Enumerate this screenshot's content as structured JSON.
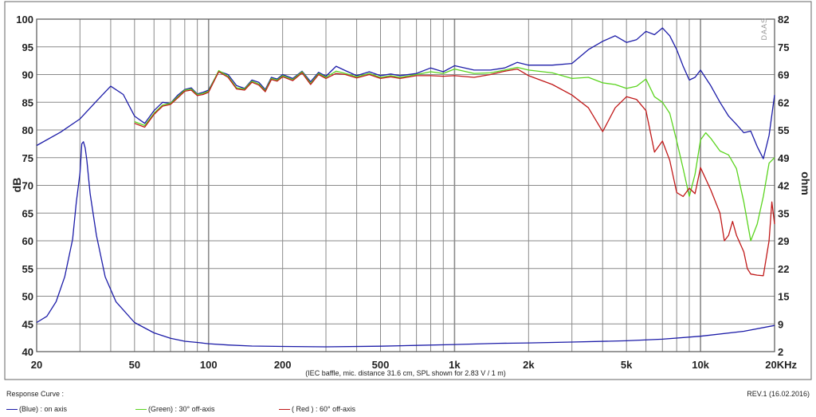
{
  "chart_data": {
    "type": "line",
    "xscale": "log",
    "xlim": [
      20,
      20000
    ],
    "ylim_left": [
      40,
      100
    ],
    "ylim_right": [
      2,
      82
    ],
    "ylabel_left": "dB",
    "ylabel_right": "ohm",
    "note": "(IEC baffle, mic. distance 31.6 cm, SPL shown for 2.83 V / 1 m)",
    "watermark": "DAAS",
    "x_tick_labels": [
      {
        "v": 20,
        "t": "20"
      },
      {
        "v": 50,
        "t": "50"
      },
      {
        "v": 100,
        "t": "100"
      },
      {
        "v": 200,
        "t": "200"
      },
      {
        "v": 500,
        "t": "500"
      },
      {
        "v": 1000,
        "t": "1k"
      },
      {
        "v": 2000,
        "t": "2k"
      },
      {
        "v": 5000,
        "t": "5k"
      },
      {
        "v": 10000,
        "t": "10k"
      },
      {
        "v": 20000,
        "t": "20KHz"
      }
    ],
    "y_left_ticks": [
      "40",
      "45",
      "50",
      "55",
      "60",
      "65",
      "70",
      "75",
      "80",
      "85",
      "90",
      "95",
      "100"
    ],
    "y_right_ticks": [
      "2",
      "9",
      "15",
      "22",
      "29",
      "35",
      "42",
      "49",
      "55",
      "62",
      "69",
      "75",
      "82"
    ],
    "colors": {
      "blue": "#1c1ca8",
      "green": "#5ad41e",
      "red": "#c01818",
      "grid": "#8a8a8a"
    },
    "series": [
      {
        "name": "(Blue) : on axis",
        "axis": "left",
        "color": "#1c1ca8",
        "points": [
          [
            20,
            77.2
          ],
          [
            25,
            79.6
          ],
          [
            30,
            82
          ],
          [
            35,
            85.2
          ],
          [
            40,
            87.9
          ],
          [
            45,
            86.4
          ],
          [
            50,
            82.5
          ],
          [
            55,
            81.2
          ],
          [
            60,
            83.5
          ],
          [
            65,
            85
          ],
          [
            70,
            84.8
          ],
          [
            75,
            86.3
          ],
          [
            80,
            87.3
          ],
          [
            85,
            87.6
          ],
          [
            90,
            86.5
          ],
          [
            95,
            86.8
          ],
          [
            100,
            87.2
          ],
          [
            110,
            90.6
          ],
          [
            120,
            90
          ],
          [
            130,
            88
          ],
          [
            140,
            87.5
          ],
          [
            150,
            89
          ],
          [
            160,
            88.6
          ],
          [
            170,
            87.3
          ],
          [
            180,
            89.5
          ],
          [
            190,
            89.2
          ],
          [
            200,
            90
          ],
          [
            220,
            89.3
          ],
          [
            240,
            90.6
          ],
          [
            260,
            88.7
          ],
          [
            280,
            90.4
          ],
          [
            300,
            89.7
          ],
          [
            330,
            91.5
          ],
          [
            360,
            90.7
          ],
          [
            400,
            89.8
          ],
          [
            450,
            90.5
          ],
          [
            500,
            89.8
          ],
          [
            550,
            90.1
          ],
          [
            600,
            89.8
          ],
          [
            700,
            90.2
          ],
          [
            800,
            91.2
          ],
          [
            900,
            90.5
          ],
          [
            1000,
            91.6
          ],
          [
            1200,
            90.8
          ],
          [
            1400,
            90.8
          ],
          [
            1600,
            91.2
          ],
          [
            1800,
            92.2
          ],
          [
            2000,
            91.7
          ],
          [
            2500,
            91.7
          ],
          [
            3000,
            92
          ],
          [
            3500,
            94.5
          ],
          [
            4000,
            96
          ],
          [
            4500,
            97
          ],
          [
            5000,
            95.8
          ],
          [
            5500,
            96.3
          ],
          [
            6000,
            97.8
          ],
          [
            6500,
            97.2
          ],
          [
            7000,
            98.4
          ],
          [
            7500,
            97
          ],
          [
            8000,
            94.5
          ],
          [
            8500,
            91.5
          ],
          [
            9000,
            89
          ],
          [
            9500,
            89.5
          ],
          [
            10000,
            90.8
          ],
          [
            11000,
            88
          ],
          [
            12000,
            85
          ],
          [
            13000,
            82.5
          ],
          [
            14000,
            81
          ],
          [
            15000,
            79.5
          ],
          [
            16000,
            79.8
          ],
          [
            17000,
            77
          ],
          [
            18000,
            74.8
          ],
          [
            19000,
            79
          ],
          [
            20000,
            86.3
          ]
        ]
      },
      {
        "name": "(Green) : 30° off-axis",
        "axis": "left",
        "color": "#5ad41e",
        "points": [
          [
            50,
            81.5
          ],
          [
            55,
            80.8
          ],
          [
            60,
            83
          ],
          [
            65,
            84.5
          ],
          [
            70,
            84.8
          ],
          [
            75,
            86
          ],
          [
            80,
            87.2
          ],
          [
            85,
            87.4
          ],
          [
            90,
            86.4
          ],
          [
            95,
            86.6
          ],
          [
            100,
            87
          ],
          [
            110,
            90.7
          ],
          [
            120,
            89.7
          ],
          [
            130,
            87.6
          ],
          [
            140,
            87.4
          ],
          [
            150,
            88.8
          ],
          [
            160,
            88.3
          ],
          [
            170,
            87.1
          ],
          [
            180,
            89.3
          ],
          [
            190,
            89
          ],
          [
            200,
            89.8
          ],
          [
            220,
            89.1
          ],
          [
            240,
            90.5
          ],
          [
            260,
            88.4
          ],
          [
            280,
            90.2
          ],
          [
            300,
            89.5
          ],
          [
            330,
            90.6
          ],
          [
            360,
            90.2
          ],
          [
            400,
            89.6
          ],
          [
            450,
            90.2
          ],
          [
            500,
            89.5
          ],
          [
            550,
            89.8
          ],
          [
            600,
            89.5
          ],
          [
            700,
            90
          ],
          [
            800,
            90.5
          ],
          [
            900,
            90.2
          ],
          [
            1000,
            91
          ],
          [
            1200,
            90.2
          ],
          [
            1400,
            90.3
          ],
          [
            1600,
            90.8
          ],
          [
            1800,
            91.3
          ],
          [
            2000,
            90.8
          ],
          [
            2500,
            90.3
          ],
          [
            3000,
            89.3
          ],
          [
            3500,
            89.5
          ],
          [
            4000,
            88.5
          ],
          [
            4500,
            88.2
          ],
          [
            5000,
            87.5
          ],
          [
            5500,
            87.9
          ],
          [
            6000,
            89.2
          ],
          [
            6500,
            86
          ],
          [
            7000,
            85
          ],
          [
            7500,
            83
          ],
          [
            8000,
            78
          ],
          [
            8500,
            73
          ],
          [
            9000,
            68
          ],
          [
            9500,
            72
          ],
          [
            10000,
            78.2
          ],
          [
            10500,
            79.5
          ],
          [
            11000,
            78.5
          ],
          [
            12000,
            76.2
          ],
          [
            13000,
            75.5
          ],
          [
            14000,
            73
          ],
          [
            15000,
            67
          ],
          [
            16000,
            60
          ],
          [
            17000,
            63
          ],
          [
            18000,
            68
          ],
          [
            19000,
            74
          ],
          [
            20000,
            75
          ]
        ]
      },
      {
        "name": "( Red ) : 60° off-axis",
        "axis": "left",
        "color": "#c01818",
        "points": [
          [
            50,
            81.2
          ],
          [
            55,
            80.5
          ],
          [
            60,
            82.8
          ],
          [
            65,
            84.3
          ],
          [
            70,
            84.6
          ],
          [
            75,
            85.8
          ],
          [
            80,
            87
          ],
          [
            85,
            87.2
          ],
          [
            90,
            86.2
          ],
          [
            95,
            86.4
          ],
          [
            100,
            86.8
          ],
          [
            110,
            90.5
          ],
          [
            120,
            89.5
          ],
          [
            130,
            87.4
          ],
          [
            140,
            87.2
          ],
          [
            150,
            88.6
          ],
          [
            160,
            88.1
          ],
          [
            170,
            86.9
          ],
          [
            180,
            89.1
          ],
          [
            190,
            88.8
          ],
          [
            200,
            89.6
          ],
          [
            220,
            88.9
          ],
          [
            240,
            90.3
          ],
          [
            260,
            88.2
          ],
          [
            280,
            90
          ],
          [
            300,
            89.3
          ],
          [
            330,
            90.2
          ],
          [
            360,
            90
          ],
          [
            400,
            89.4
          ],
          [
            450,
            90
          ],
          [
            500,
            89.3
          ],
          [
            550,
            89.6
          ],
          [
            600,
            89.3
          ],
          [
            700,
            89.8
          ],
          [
            800,
            89.8
          ],
          [
            900,
            89.7
          ],
          [
            1000,
            89.8
          ],
          [
            1200,
            89.5
          ],
          [
            1400,
            90
          ],
          [
            1600,
            90.6
          ],
          [
            1800,
            91
          ],
          [
            2000,
            89.8
          ],
          [
            2500,
            88.2
          ],
          [
            3000,
            86.3
          ],
          [
            3500,
            84
          ],
          [
            4000,
            79.7
          ],
          [
            4500,
            84
          ],
          [
            5000,
            86
          ],
          [
            5500,
            85.5
          ],
          [
            6000,
            83.5
          ],
          [
            6500,
            76
          ],
          [
            7000,
            78
          ],
          [
            7500,
            74.5
          ],
          [
            8000,
            68.7
          ],
          [
            8500,
            68
          ],
          [
            9000,
            69.5
          ],
          [
            9500,
            68.5
          ],
          [
            10000,
            73.2
          ],
          [
            11000,
            69.2
          ],
          [
            12000,
            65
          ],
          [
            12500,
            60
          ],
          [
            13000,
            61
          ],
          [
            13500,
            63.5
          ],
          [
            14000,
            61
          ],
          [
            15000,
            58
          ],
          [
            15500,
            55
          ],
          [
            16000,
            54
          ],
          [
            17000,
            53.8
          ],
          [
            18000,
            53.7
          ],
          [
            19000,
            60
          ],
          [
            19500,
            67
          ],
          [
            20000,
            63
          ]
        ]
      },
      {
        "name": "impedance",
        "axis": "right",
        "color": "#1c1ca8",
        "points": [
          [
            20,
            9
          ],
          [
            22,
            10.5
          ],
          [
            24,
            14
          ],
          [
            26,
            20
          ],
          [
            28,
            29
          ],
          [
            29,
            38
          ],
          [
            30,
            45
          ],
          [
            30.5,
            52
          ],
          [
            31,
            52.5
          ],
          [
            31.5,
            51
          ],
          [
            32,
            48
          ],
          [
            33,
            40
          ],
          [
            35,
            30
          ],
          [
            38,
            20
          ],
          [
            42,
            14
          ],
          [
            50,
            9
          ],
          [
            60,
            6.5
          ],
          [
            70,
            5.2
          ],
          [
            80,
            4.5
          ],
          [
            90,
            4.2
          ],
          [
            100,
            3.9
          ],
          [
            120,
            3.6
          ],
          [
            150,
            3.35
          ],
          [
            200,
            3.25
          ],
          [
            300,
            3.15
          ],
          [
            500,
            3.3
          ],
          [
            700,
            3.5
          ],
          [
            1000,
            3.7
          ],
          [
            1500,
            4
          ],
          [
            2000,
            4.1
          ],
          [
            3000,
            4.3
          ],
          [
            5000,
            4.6
          ],
          [
            7000,
            5
          ],
          [
            10000,
            5.7
          ],
          [
            15000,
            6.9
          ],
          [
            20000,
            8.3
          ]
        ]
      }
    ]
  },
  "footer": {
    "legend_title": "Response Curve :",
    "revision": "REV.1 (16.02.2016)",
    "legend": [
      {
        "name": "(Blue) : on axis",
        "color": "#1c1ca8"
      },
      {
        "name": "(Green) : 30° off-axis",
        "color": "#5ad41e"
      },
      {
        "name": "( Red ) : 60° off-axis",
        "color": "#c01818"
      }
    ]
  }
}
